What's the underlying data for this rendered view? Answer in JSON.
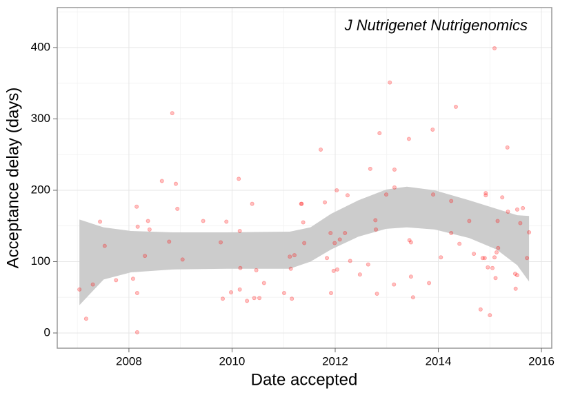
{
  "chart_data": {
    "type": "scatter",
    "annotation": "J Nutrigenet Nutrigenomics",
    "x_label": "Date accepted",
    "y_label": "Acceptance delay (days)",
    "xlim": [
      2006.61,
      2016.2
    ],
    "ylim": [
      -21.3,
      456
    ],
    "xticks": [
      2008,
      2010,
      2012,
      2014,
      2016
    ],
    "yticks": [
      0,
      100,
      200,
      300,
      400
    ],
    "xminorticks": [
      2007,
      2009,
      2011,
      2013,
      2015
    ],
    "yminorticks": [
      50,
      150,
      250,
      350,
      450
    ],
    "grid": true,
    "color": "#ff0000",
    "alpha": 0.25,
    "x": [
      2007.04,
      2007.17,
      2007.3,
      2007.44,
      2007.53,
      2007.75,
      2008.08,
      2008.15,
      2008.17,
      2008.16,
      2008.16,
      2008.31,
      2008.37,
      2008.4,
      2008.64,
      2008.78,
      2008.84,
      2008.91,
      2008.94,
      2009.04,
      2009.44,
      2009.78,
      2009.82,
      2009.89,
      2009.98,
      2010.13,
      2010.15,
      2010.16,
      2010.15,
      2010.29,
      2010.39,
      2010.43,
      2010.47,
      2010.53,
      2010.62,
      2011.01,
      2011.12,
      2011.14,
      2011.16,
      2011.21,
      2011.34,
      2011.35,
      2011.38,
      2011.4,
      2011.72,
      2011.8,
      2011.84,
      2011.91,
      2011.92,
      2011.97,
      2011.99,
      2012.03,
      2012.04,
      2012.09,
      2012.19,
      2012.24,
      2012.29,
      2012.48,
      2012.64,
      2012.68,
      2012.78,
      2012.79,
      2012.81,
      2012.86,
      2012.99,
      2013.06,
      2013.15,
      2013.15,
      2013.14,
      2013.43,
      2013.44,
      2013.47,
      2013.47,
      2013.51,
      2013.82,
      2013.89,
      2013.9,
      2014.05,
      2014.25,
      2014.25,
      2014.34,
      2014.41,
      2014.6,
      2014.69,
      2014.82,
      2014.86,
      2014.9,
      2014.92,
      2014.92,
      2014.96,
      2015.0,
      2015.05,
      2015.09,
      2015.11,
      2015.09,
      2015.13,
      2015.15,
      2015.16,
      2015.24,
      2015.34,
      2015.35,
      2015.49,
      2015.53,
      2015.5,
      2015.53,
      2015.59,
      2015.64,
      2015.72,
      2015.76
    ],
    "values": [
      61,
      20,
      68,
      156,
      122,
      74,
      76,
      177,
      149,
      56,
      1,
      108,
      157,
      145,
      213,
      128,
      308,
      209,
      174,
      103,
      157,
      127,
      48,
      156,
      57,
      216,
      143,
      91,
      61,
      45,
      181,
      49,
      88,
      49,
      70,
      56,
      107,
      90,
      48,
      109,
      181,
      181,
      155,
      126,
      257,
      183,
      105,
      140,
      56,
      87,
      126,
      200,
      89,
      131,
      140,
      193,
      101,
      82,
      96,
      230,
      158,
      145,
      55,
      280,
      194,
      351,
      229,
      204,
      68,
      272,
      130,
      127,
      79,
      50,
      70,
      285,
      194,
      106,
      185,
      140,
      317,
      125,
      157,
      111,
      33,
      105,
      105,
      196,
      193,
      92,
      25,
      91,
      106,
      77,
      399,
      113,
      157,
      119,
      190,
      260,
      170,
      83,
      81,
      62,
      173,
      154,
      175,
      105,
      141
    ],
    "band": {
      "color": "#cccccc",
      "x": [
        2007.04,
        2007.51,
        2008.04,
        2008.84,
        2009.91,
        2011.12,
        2011.52,
        2011.92,
        2012.45,
        2012.99,
        2013.39,
        2013.93,
        2014.6,
        2015.13,
        2015.53,
        2015.76
      ],
      "lower": [
        39,
        75,
        85,
        89,
        90,
        90,
        100,
        117,
        135,
        146,
        148,
        145,
        133,
        117,
        95,
        72
      ],
      "upper": [
        159,
        148,
        143,
        141,
        141,
        142,
        148,
        167,
        186,
        201,
        205,
        200,
        186,
        174,
        165,
        164
      ]
    }
  }
}
